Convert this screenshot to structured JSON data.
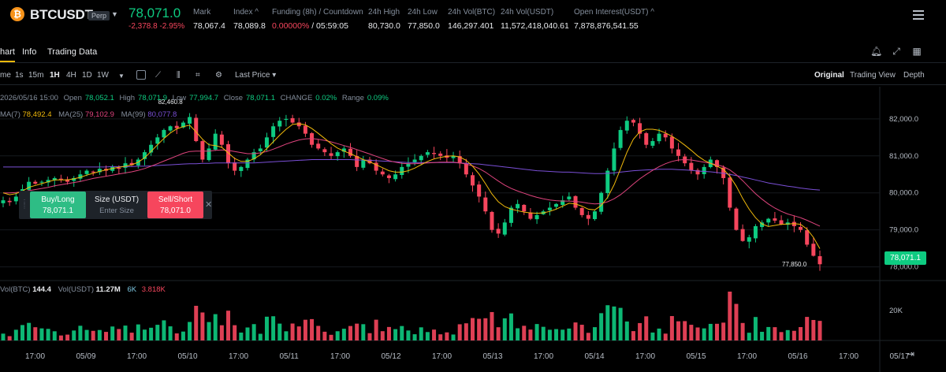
{
  "ticker": {
    "coin_logo": "₿",
    "symbol": "BTCUSDT",
    "badge": "Perp",
    "last_price": "78,071.0",
    "change": "-2,378.8 -2.95%",
    "stats": [
      {
        "label": "Mark",
        "value": "78,067.4"
      },
      {
        "label": "Index ^",
        "value": "78,089.8"
      },
      {
        "label": "Funding (8h) / Countdown",
        "value": "0.00000%",
        "value2": "/ 05:59:05"
      },
      {
        "label": "24h High",
        "value": "80,730.0"
      },
      {
        "label": "24h Low",
        "value": "77,850.0"
      },
      {
        "label": "24h Vol(BTC)",
        "value": "146,297.401"
      },
      {
        "label": "24h Vol(USDT)",
        "value": "11,572,418,040.61"
      },
      {
        "label": "Open Interest(USDT) ^",
        "value": "7,878,876,541.55"
      }
    ]
  },
  "tabs": [
    "hart",
    "Info",
    "Trading Data"
  ],
  "toolbar": {
    "intervals": [
      "me",
      "1s",
      "15m",
      "1H",
      "4H",
      "1D",
      "1W"
    ],
    "active_interval": "1H",
    "price_type": "Last Price",
    "views": [
      "Original",
      "Trading View",
      "Depth"
    ],
    "active_view": "Original"
  },
  "ohlc": {
    "date": "2026/05/16 15:00",
    "open_label": "Open",
    "open": "78,052.1",
    "high_label": "High",
    "high": "78,071.9",
    "low_label": "Low",
    "low": "77,994.7",
    "close_label": "Close",
    "close": "78,071.1",
    "change_label": "CHANGE",
    "change": "0.02%",
    "range_label": "Range",
    "range": "0.09%"
  },
  "ma": {
    "ma7_label": "MA(7)",
    "ma7": "78,492.4",
    "ma25_label": "MA(25)",
    "ma25": "79,102.9",
    "ma99_label": "MA(99)",
    "ma99": "80,077.8"
  },
  "order_panel": {
    "buy_label": "Buy/Long",
    "buy_price": "78,071.1",
    "size_label": "Size (USDT)",
    "size_placeholder": "Enter Size",
    "sell_label": "Sell/Short",
    "sell_price": "78,071.0"
  },
  "volume": {
    "vol_btc_label": "Vol(BTC)",
    "vol_btc": "144.4",
    "vol_usdt_label": "Vol(USDT)",
    "vol_usdt": "11.27M",
    "ma1": "6K",
    "ma2": "3.818K",
    "axis_label": "20K"
  },
  "colors": {
    "up": "#0ecb81",
    "down": "#f6465d",
    "ma7": "#f0b90b",
    "ma25": "#e0447e",
    "ma99": "#7a4fd6",
    "vol_ma1": "#7ec8e3",
    "vol_ma2": "#e0447e"
  },
  "chart_data": {
    "type": "candlestick",
    "ylim": [
      77800,
      82700
    ],
    "y_ticks": [
      "82,000.0",
      "81,000.0",
      "80,000.0",
      "79,000.0",
      "78,000.0"
    ],
    "y_tick_values": [
      82000,
      81000,
      80000,
      79000,
      78000
    ],
    "x_tick_labels": [
      "17:00",
      "05/09",
      "17:00",
      "05/10",
      "17:00",
      "05/11",
      "17:00",
      "05/12",
      "17:00",
      "05/13",
      "17:00",
      "05/14",
      "17:00",
      "05/15",
      "17:00",
      "05/16",
      "17:00",
      "05/17"
    ],
    "high_marker": "82,460.8",
    "low_marker": "77,850.0",
    "current_price": "78,071.1",
    "close_path": [
      79800,
      79750,
      79900,
      80100,
      80300,
      80250,
      80300,
      80350,
      80400,
      80350,
      80300,
      80400,
      80500,
      80600,
      80550,
      80650,
      80600,
      80700,
      80650,
      80800,
      80750,
      80900,
      81100,
      81300,
      81500,
      81700,
      81800,
      81750,
      81900,
      82050,
      81400,
      80900,
      81200,
      81600,
      81300,
      80800,
      80600,
      80700,
      80900,
      81100,
      81200,
      81500,
      81800,
      81950,
      82000,
      81900,
      81800,
      81600,
      81300,
      81200,
      81100,
      81000,
      81100,
      81200,
      81000,
      80700,
      80900,
      80800,
      80600,
      80500,
      80400,
      80500,
      80700,
      80800,
      80900,
      81000,
      81100,
      81050,
      81000,
      80950,
      81000,
      80800,
      80500,
      80200,
      79900,
      79500,
      79000,
      78900,
      79200,
      79600,
      79700,
      79500,
      79300,
      79400,
      79500,
      79600,
      79700,
      79800,
      79900,
      79600,
      79400,
      79300,
      79500,
      80000,
      80600,
      81200,
      81700,
      81950,
      81900,
      81600,
      81300,
      81400,
      81600,
      81500,
      81200,
      81000,
      80800,
      80600,
      80500,
      80700,
      80900,
      80700,
      80400,
      79600,
      79000,
      78700,
      78800,
      79100,
      79200,
      79300,
      79250,
      79150,
      79200,
      79100,
      79000,
      78600,
      78300,
      78071
    ],
    "ma7_path": [
      80000,
      79950,
      79980,
      80050,
      80150,
      80200,
      80250,
      80300,
      80350,
      80350,
      80350,
      80380,
      80420,
      80480,
      80530,
      80580,
      80620,
      80660,
      80690,
      80720,
      80760,
      80830,
      80950,
      81120,
      81300,
      81470,
      81620,
      81730,
      81790,
      81830,
      81650,
      81450,
      81300,
      81280,
      81230,
      81080,
      80930,
      80850,
      80850,
      80920,
      81030,
      81200,
      81380,
      81560,
      81720,
      81850,
      81870,
      81840,
      81740,
      81610,
      81470,
      81330,
      81210,
      81130,
      81060,
      80980,
      80900,
      80840,
      80760,
      80680,
      80600,
      80560,
      80560,
      80600,
      80670,
      80760,
      80850,
      80920,
      80960,
      80990,
      81000,
      80970,
      80880,
      80720,
      80510,
      80250,
      79970,
      79760,
      79630,
      79560,
      79520,
      79480,
      79460,
      79450,
      79460,
      79500,
      79560,
      79640,
      79720,
      79700,
      79640,
      79560,
      79540,
      79660,
      79880,
      80220,
      80650,
      81100,
      81450,
      81650,
      81720,
      81720,
      81690,
      81620,
      81530,
      81420,
      81290,
      81150,
      81000,
      80880,
      80800,
      80720,
      80640,
      80450,
      80180,
      79850,
      79560,
      79330,
      79160,
      79090,
      79120,
      79150,
      79160,
      79170,
      79150,
      79020,
      78800,
      78492
    ],
    "ma25_path": [
      80000,
      80000,
      80010,
      80030,
      80060,
      80090,
      80120,
      80150,
      80190,
      80220,
      80250,
      80280,
      80310,
      80350,
      80390,
      80420,
      80450,
      80480,
      80510,
      80540,
      80570,
      80610,
      80660,
      80720,
      80790,
      80860,
      80930,
      81000,
      81070,
      81120,
      81130,
      81130,
      81130,
      81150,
      81160,
      81150,
      81120,
      81090,
      81060,
      81060,
      81080,
      81120,
      81180,
      81250,
      81320,
      81380,
      81430,
      81460,
      81470,
      81450,
      81420,
      81380,
      81330,
      81280,
      81230,
      81170,
      81110,
      81050,
      80990,
      80930,
      80870,
      80830,
      80800,
      80790,
      80790,
      80800,
      80810,
      80820,
      80830,
      80830,
      80830,
      80810,
      80780,
      80730,
      80660,
      80560,
      80440,
      80320,
      80210,
      80120,
      80050,
      79990,
      79930,
      79880,
      79840,
      79810,
      79790,
      79780,
      79780,
      79770,
      79750,
      79720,
      79700,
      79710,
      79760,
      79840,
      79950,
      80090,
      80240,
      80380,
      80500,
      80610,
      80710,
      80790,
      80850,
      80890,
      80900,
      80890,
      80860,
      80830,
      80800,
      80760,
      80710,
      80620,
      80490,
      80330,
      80150,
      79980,
      79830,
      79700,
      79590,
      79500,
      79430,
      79380,
      79330,
      79260,
      79180,
      79102
    ],
    "ma99_path": [
      80700,
      80700,
      80700,
      80700,
      80700,
      80700,
      80700,
      80700,
      80700,
      80700,
      80700,
      80700,
      80700,
      80700,
      80700,
      80700,
      80700,
      80710,
      80710,
      80710,
      80710,
      80720,
      80720,
      80730,
      80740,
      80750,
      80760,
      80770,
      80780,
      80790,
      80790,
      80800,
      80800,
      80810,
      80810,
      80810,
      80810,
      80810,
      80810,
      80810,
      80820,
      80830,
      80840,
      80850,
      80860,
      80870,
      80880,
      80890,
      80900,
      80900,
      80900,
      80900,
      80900,
      80900,
      80900,
      80890,
      80890,
      80880,
      80870,
      80860,
      80850,
      80840,
      80830,
      80820,
      80820,
      80820,
      80820,
      80820,
      80820,
      80820,
      80820,
      80810,
      80800,
      80790,
      80780,
      80760,
      80740,
      80720,
      80700,
      80680,
      80660,
      80640,
      80620,
      80600,
      80590,
      80580,
      80570,
      80560,
      80560,
      80550,
      80540,
      80530,
      80520,
      80520,
      80530,
      80540,
      80560,
      80580,
      80600,
      80610,
      80620,
      80630,
      80640,
      80640,
      80640,
      80630,
      80620,
      80610,
      80590,
      80580,
      80570,
      80550,
      80530,
      80500,
      80470,
      80430,
      80390,
      80350,
      80310,
      80270,
      80240,
      80210,
      80180,
      80160,
      80130,
      80110,
      80090,
      80077
    ]
  }
}
